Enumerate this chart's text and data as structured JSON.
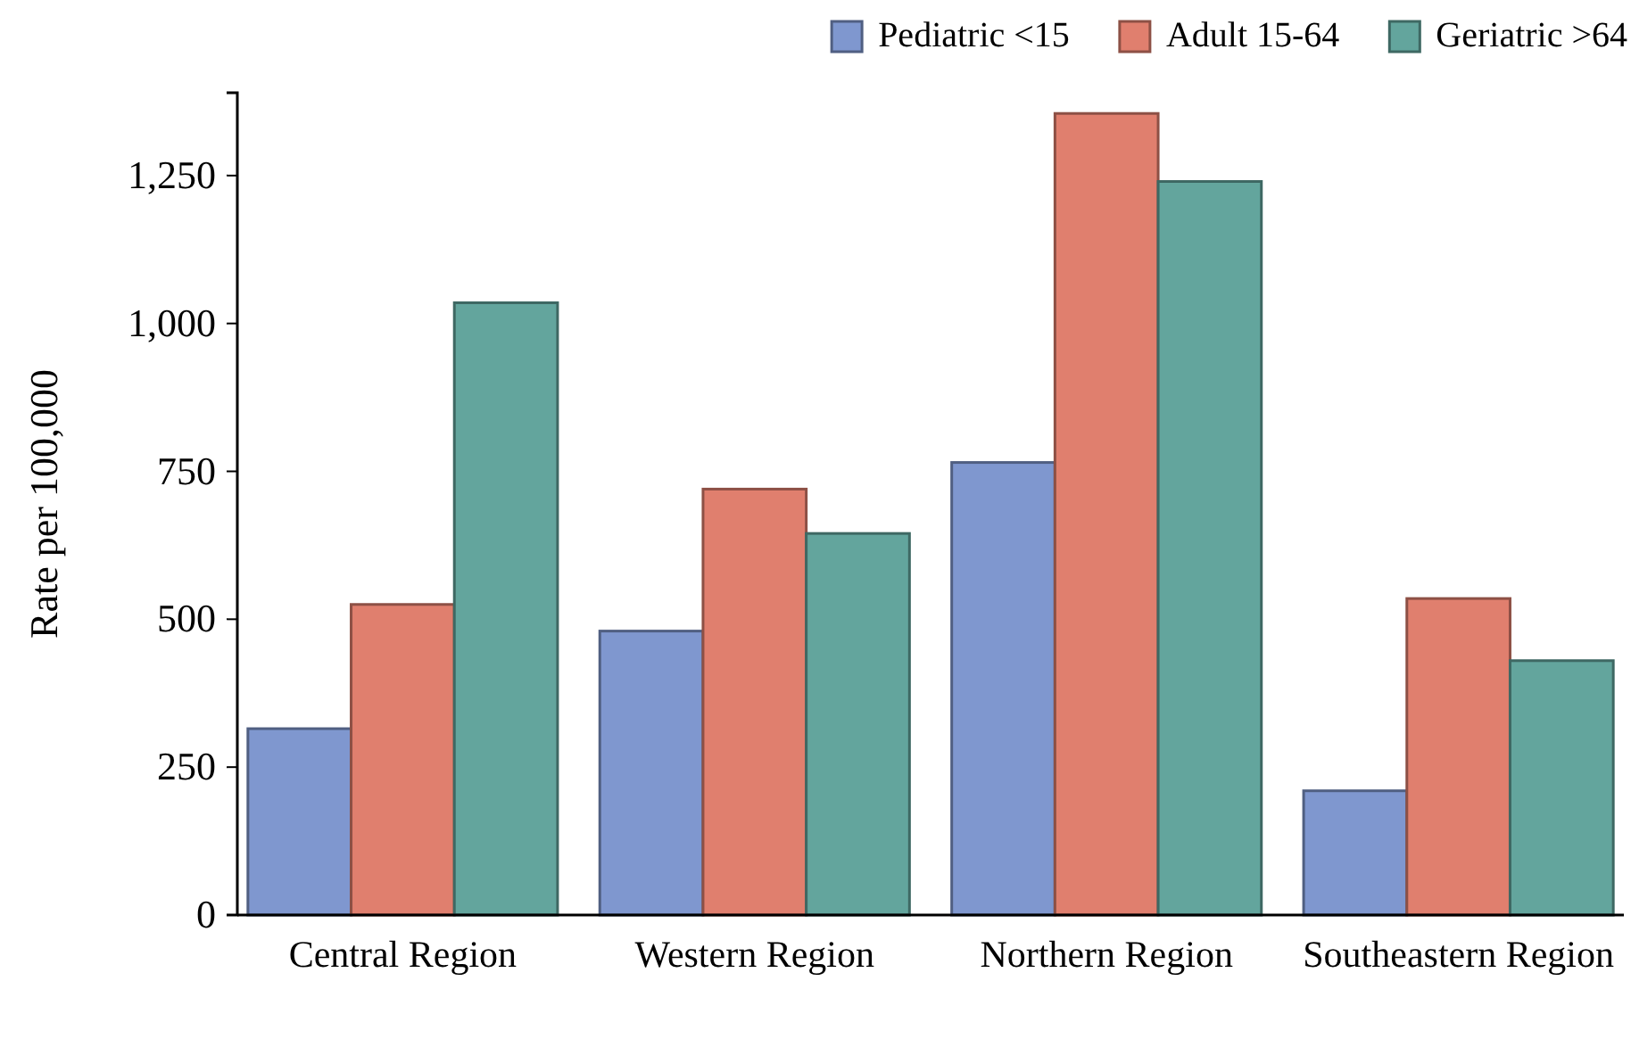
{
  "chart_data": {
    "type": "bar",
    "ylabel": "Rate per 100,000",
    "categories": [
      "Central Region",
      "Western Region",
      "Northern Region",
      "Southeastern Region"
    ],
    "series": [
      {
        "name": "Pediatric <15",
        "color": "#7f97cf",
        "values": [
          315,
          480,
          765,
          210
        ]
      },
      {
        "name": "Adult 15-64",
        "color": "#e07f6e",
        "values": [
          525,
          720,
          1355,
          535
        ]
      },
      {
        "name": "Geriatric >64",
        "color": "#63a59d",
        "values": [
          1035,
          645,
          1240,
          430
        ]
      }
    ],
    "ylim": [
      0,
      1390
    ],
    "yticks": [
      0,
      {
        "value": 250,
        "label": "250"
      },
      {
        "value": 500,
        "label": "500"
      },
      {
        "value": 750,
        "label": "750"
      },
      {
        "value": 1000,
        "label": "1,000"
      },
      {
        "value": 1250,
        "label": "1,250"
      }
    ],
    "grid": false,
    "legend": "top right"
  }
}
